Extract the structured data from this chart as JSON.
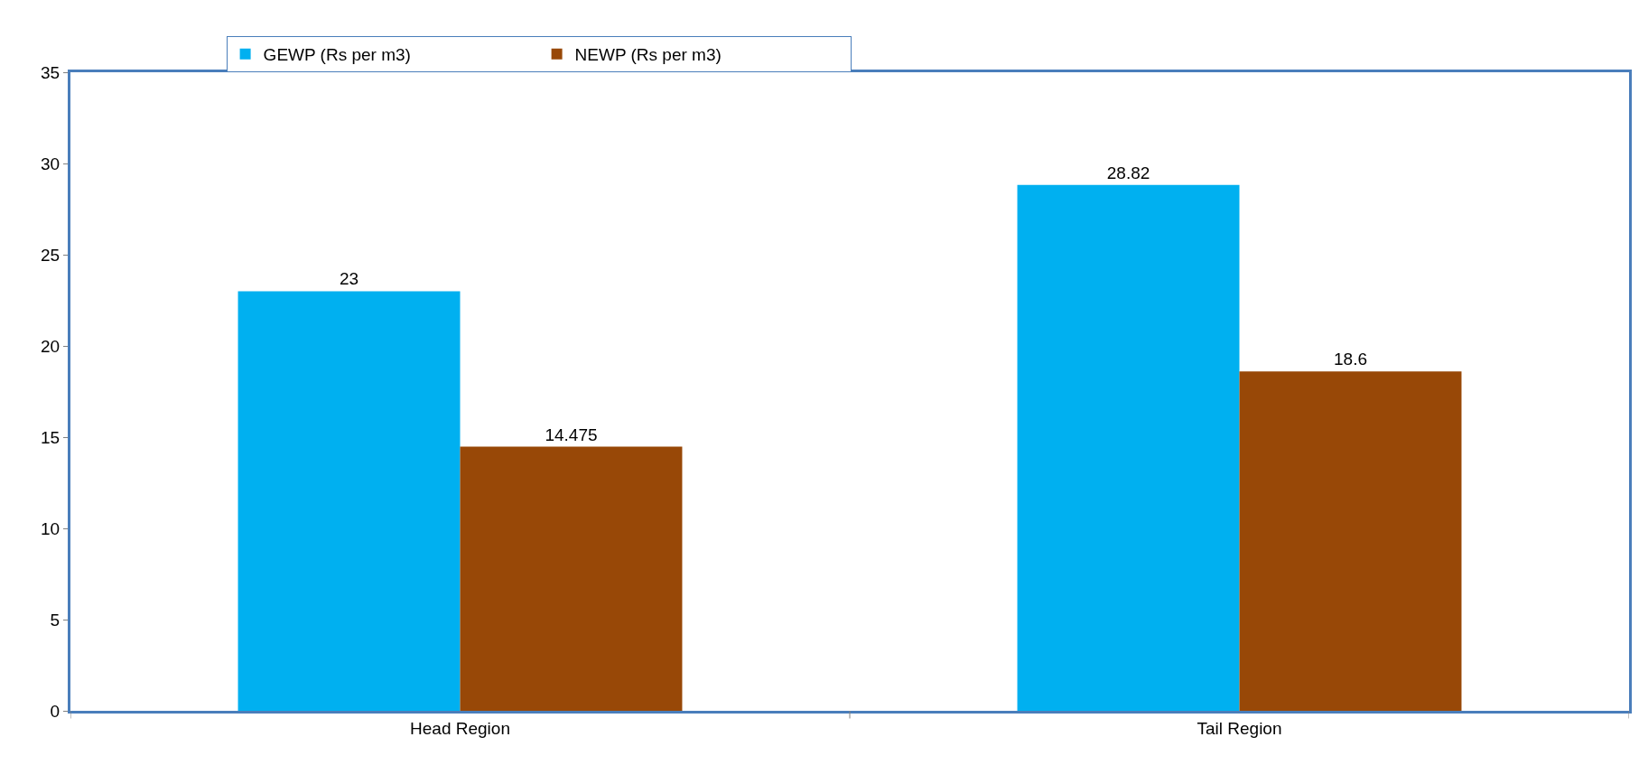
{
  "chart_data": {
    "type": "bar",
    "categories": [
      "Head Region",
      "Tail Region"
    ],
    "series": [
      {
        "name": "GEWP (Rs per m3)",
        "color": "#00b0f0",
        "values": [
          23,
          28.82
        ]
      },
      {
        "name": "NEWP (Rs per m3)",
        "color": "#984807",
        "values": [
          14.475,
          18.6
        ]
      }
    ],
    "ylim": [
      0,
      35
    ],
    "yticks": [
      0,
      5,
      10,
      15,
      20,
      25,
      30,
      35
    ],
    "legend": "top left",
    "data_labels": true
  }
}
